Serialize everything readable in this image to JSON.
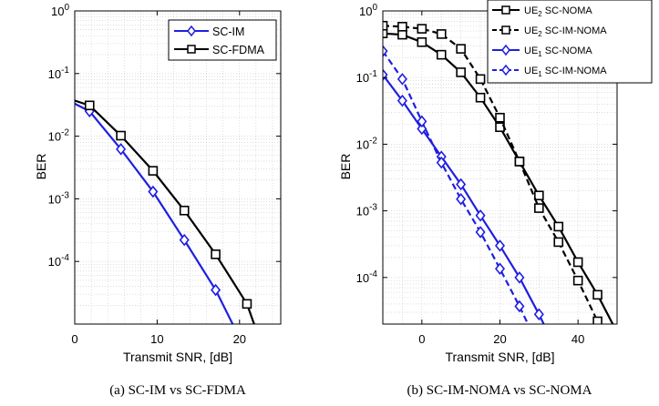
{
  "chart_data": [
    {
      "type": "line",
      "caption": "(a) SC-IM vs SC-FDMA",
      "xlabel": "Transmit SNR, [dB]",
      "ylabel": "BER",
      "xlim": [
        0,
        25
      ],
      "ylim": [
        1e-05,
        1
      ],
      "yscale": "log",
      "grid": true,
      "xticks": [
        {
          "v": 0,
          "label": "0"
        },
        {
          "v": 10,
          "label": "10"
        },
        {
          "v": 20,
          "label": "20"
        }
      ],
      "yticks": [
        {
          "v": 1,
          "base": "10",
          "exp": "0"
        },
        {
          "v": 0.1,
          "base": "10",
          "exp": "-1"
        },
        {
          "v": 0.01,
          "base": "10",
          "exp": "-2"
        },
        {
          "v": 0.001,
          "base": "10",
          "exp": "-3"
        },
        {
          "v": 0.0001,
          "base": "10",
          "exp": "-4"
        }
      ],
      "legend_position": "top-right",
      "series": [
        {
          "name": "SC-IM",
          "color": "#1f1fe0",
          "dash": false,
          "marker": "diamond",
          "x": [
            -2,
            1.8,
            5.6,
            9.5,
            13.3,
            17.1,
            20.9
          ],
          "y": [
            0.045,
            0.025,
            0.0062,
            0.0013,
            0.00022,
            3.5e-05,
            3.5e-06
          ],
          "markers_at": [
            1,
            2,
            3,
            4,
            5
          ]
        },
        {
          "name": "SC-FDMA",
          "color": "#000000",
          "dash": false,
          "marker": "square",
          "x": [
            -2,
            1.8,
            5.6,
            9.5,
            13.3,
            17.1,
            20.9,
            23
          ],
          "y": [
            0.045,
            0.031,
            0.0102,
            0.0028,
            0.00065,
            0.00013,
            2.1e-05,
            3.5e-06
          ],
          "markers_at": [
            1,
            2,
            3,
            4,
            5,
            6
          ]
        }
      ]
    },
    {
      "type": "line",
      "caption": "(b) SC-IM-NOMA vs SC-NOMA",
      "xlabel": "Transmit SNR, [dB]",
      "ylabel": "BER",
      "xlim": [
        -10,
        50
      ],
      "ylim": [
        2e-05,
        1
      ],
      "yscale": "log",
      "grid": true,
      "xticks": [
        {
          "v": 0,
          "label": "0"
        },
        {
          "v": 20,
          "label": "20"
        },
        {
          "v": 40,
          "label": "40"
        }
      ],
      "yticks": [
        {
          "v": 1,
          "base": "10",
          "exp": "0"
        },
        {
          "v": 0.1,
          "base": "10",
          "exp": "-1"
        },
        {
          "v": 0.01,
          "base": "10",
          "exp": "-2"
        },
        {
          "v": 0.001,
          "base": "10",
          "exp": "-3"
        },
        {
          "v": 0.0001,
          "base": "10",
          "exp": "-4"
        }
      ],
      "legend_position": "top-right (outside)",
      "series": [
        {
          "name_prefix": "UE",
          "name_sub": "2",
          "name_suffix": " SC-NOMA",
          "color": "#000000",
          "dash": false,
          "marker": "square",
          "x": [
            -10,
            -5,
            0,
            5,
            10,
            15,
            20,
            25,
            30,
            35,
            40,
            45,
            50
          ],
          "y": [
            0.46,
            0.44,
            0.34,
            0.22,
            0.12,
            0.05,
            0.018,
            0.0055,
            0.0017,
            0.00058,
            0.00017,
            5.5e-05,
            1.5e-05
          ]
        },
        {
          "name_prefix": "UE",
          "name_sub": "2",
          "name_suffix": " SC-IM-NOMA",
          "color": "#000000",
          "dash": true,
          "marker": "square",
          "x": [
            -10,
            -5,
            0,
            5,
            10,
            15,
            20,
            25,
            30,
            35,
            40,
            45,
            50
          ],
          "y": [
            0.6,
            0.58,
            0.54,
            0.45,
            0.27,
            0.095,
            0.025,
            0.0055,
            0.0011,
            0.00034,
            9e-05,
            2.2e-05,
            5e-06
          ]
        },
        {
          "name_prefix": "UE",
          "name_sub": "1",
          "name_suffix": " SC-NOMA",
          "color": "#1f1fe0",
          "dash": false,
          "marker": "diamond",
          "x": [
            -10,
            -5,
            0,
            5,
            10,
            15,
            20,
            25,
            30,
            35
          ],
          "y": [
            0.11,
            0.045,
            0.017,
            0.0065,
            0.0025,
            0.00085,
            0.0003,
            0.0001,
            2.8e-05,
            7e-06
          ]
        },
        {
          "name_prefix": "UE",
          "name_sub": "1",
          "name_suffix": " SC-IM-NOMA",
          "color": "#1f1fe0",
          "dash": true,
          "marker": "diamond",
          "x": [
            -10,
            -5,
            0,
            5,
            10,
            15,
            20,
            25,
            30
          ],
          "y": [
            0.25,
            0.095,
            0.022,
            0.0053,
            0.0015,
            0.00048,
            0.000135,
            3.7e-05,
            9e-06
          ]
        }
      ]
    }
  ]
}
